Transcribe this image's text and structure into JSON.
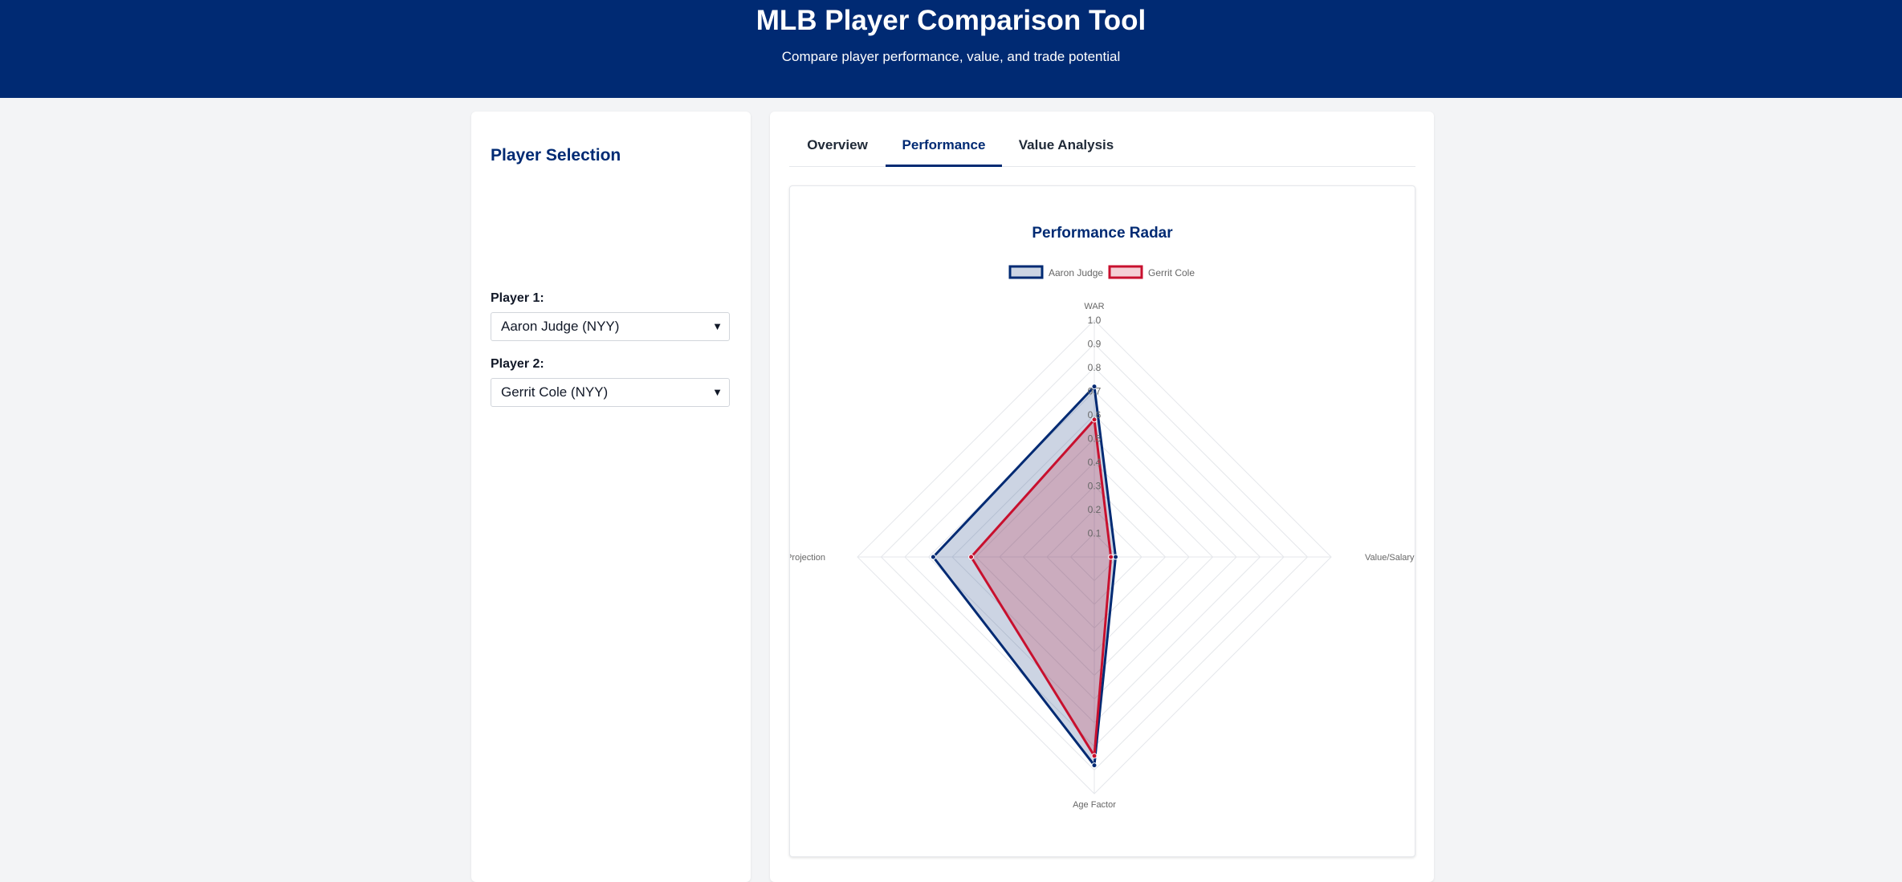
{
  "header": {
    "title": "MLB Player Comparison Tool",
    "subtitle": "Compare player performance, value, and trade potential"
  },
  "sidebar": {
    "title": "Player Selection",
    "player1_label": "Player 1:",
    "player1_value": "Aaron Judge (NYY)",
    "player2_label": "Player 2:",
    "player2_value": "Gerrit Cole (NYY)"
  },
  "tabs": [
    {
      "label": "Overview",
      "active": false
    },
    {
      "label": "Performance",
      "active": true
    },
    {
      "label": "Value Analysis",
      "active": false
    }
  ],
  "chart_data": {
    "type": "radar",
    "title": "Performance Radar",
    "axes": [
      "WAR",
      "Value/Salary",
      "Age Factor",
      "Projection"
    ],
    "ticks": [
      "0.1",
      "0.2",
      "0.3",
      "0.4",
      "0.5",
      "0.6",
      "0.7",
      "0.8",
      "0.9",
      "1.0"
    ],
    "range": [
      0,
      1
    ],
    "grid": true,
    "legend_position": "top",
    "series": [
      {
        "name": "Aaron Judge",
        "values": [
          0.72,
          0.09,
          0.88,
          0.68
        ],
        "color": "#002a73"
      },
      {
        "name": "Gerrit Cole",
        "values": [
          0.58,
          0.07,
          0.84,
          0.52
        ],
        "color": "#c8102e"
      }
    ]
  },
  "colors": {
    "primary": "#002a73",
    "secondary": "#c8102e"
  }
}
